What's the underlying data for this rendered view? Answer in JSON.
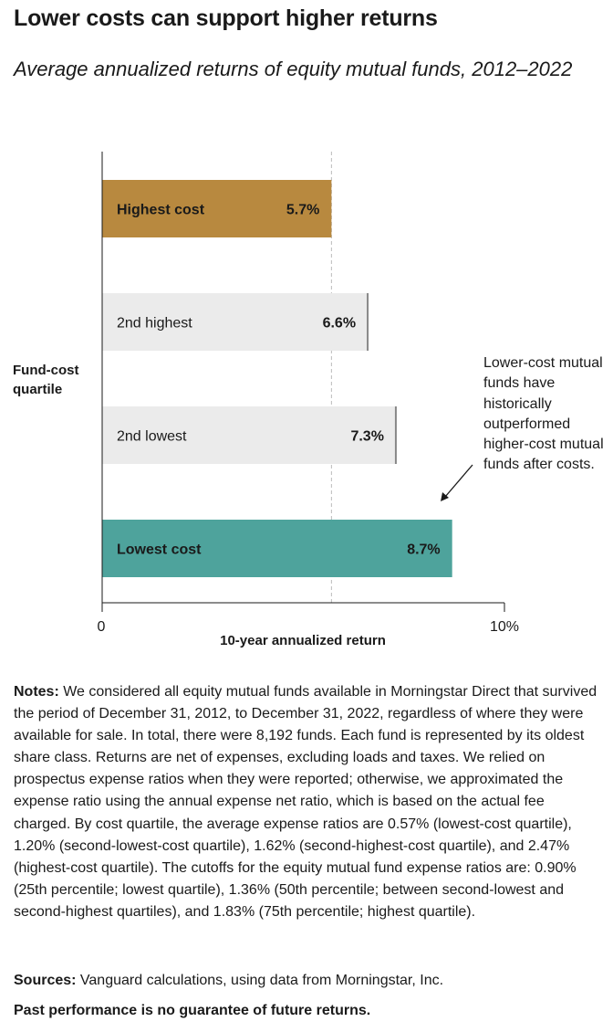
{
  "header": {
    "title": "Lower costs can support higher returns",
    "subtitle": "Average annualized returns of equity mutual funds, 2012–2022"
  },
  "chart_data": {
    "type": "bar",
    "orientation": "horizontal",
    "categories": [
      "Highest cost",
      "2nd highest",
      "2nd lowest",
      "Lowest cost"
    ],
    "values": [
      5.7,
      6.6,
      7.3,
      8.7
    ],
    "value_labels": [
      "5.7%",
      "6.6%",
      "7.3%",
      "8.7%"
    ],
    "bar_colors": [
      "#B8893F",
      "#EBEBEB",
      "#EBEBEB",
      "#4EA39C"
    ],
    "bold_labels": [
      true,
      false,
      false,
      true
    ],
    "xlabel": "10-year annualized return",
    "ylabel": "Fund-cost quartile",
    "xlim": [
      0,
      10
    ],
    "xticks": [
      0,
      10
    ],
    "xtick_labels": [
      "0",
      "10%"
    ],
    "reference_line": 5.7,
    "annotation": "Lower-cost mutual funds have historically outperformed higher-cost mutual funds after costs.",
    "grid": false
  },
  "notes": {
    "label": "Notes:",
    "text": " We considered all equity mutual funds available in Morningstar Direct that survived the period of December 31, 2012, to December 31, 2022, regardless of where they were available for sale. In total, there were 8,192 funds. Each fund is represented by its oldest share class. Returns are net of expenses, excluding loads and taxes. We relied on prospectus expense ratios when they were reported; otherwise, we approximated the expense ratio using the annual expense net ratio, which is based on the actual fee charged. By cost quartile, the average expense ratios are 0.57% (lowest-cost quartile), 1.20% (second-lowest-cost quartile), 1.62% (second-highest-cost quartile), and 2.47% (highest-cost quartile). The cutoffs for the equity mutual fund expense ratios are: 0.90% (25th percentile; lowest quartile), 1.36% (50th percentile; between second-lowest and second-highest quartiles), and 1.83% (75th percentile; highest quartile)."
  },
  "sources": {
    "label": "Sources:",
    "text": " Vanguard calculations, using data from Morningstar, Inc."
  },
  "disclaimer": "Past performance is no guarantee of future returns."
}
